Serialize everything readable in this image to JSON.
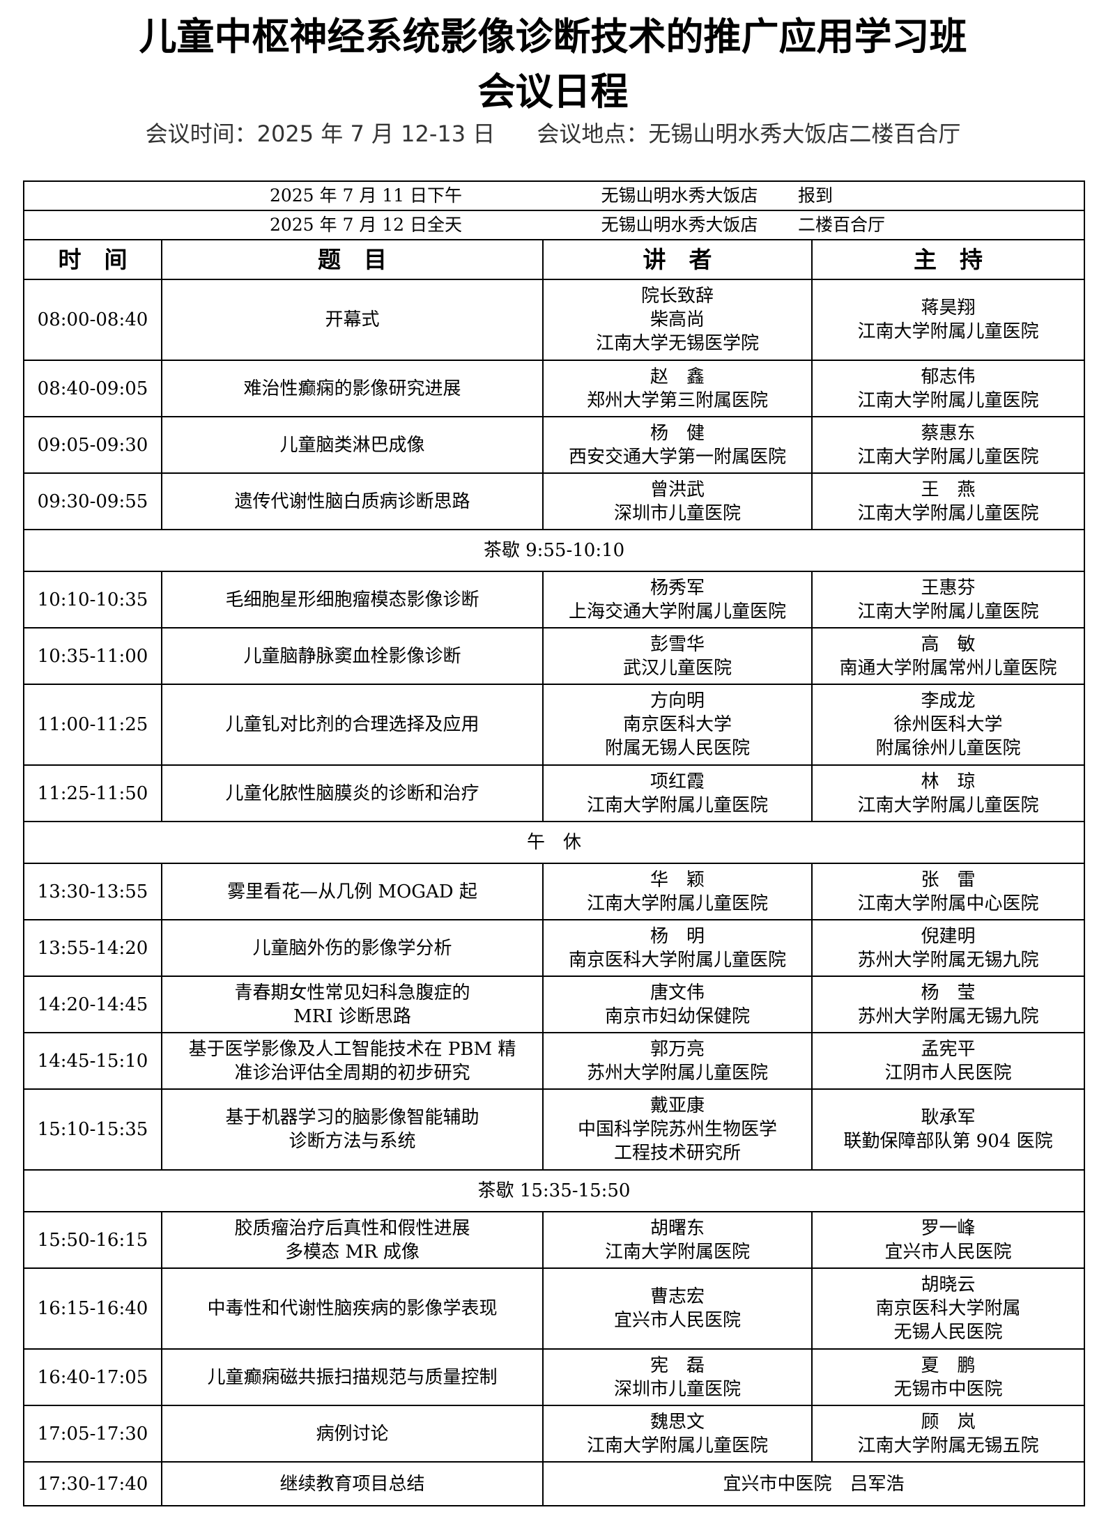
{
  "header": {
    "title": "儿童中枢神经系统影像诊断技术的推广应用学习班",
    "subtitle": "会议日程",
    "info": [
      "会议时间：2025 年 7 月 12-13 日",
      "会议地点：无锡山明水秀大饭店二楼百合厅"
    ]
  },
  "table": {
    "notices": [
      [
        "2025 年 7 月 11 日下午",
        "无锡山明水秀大饭店",
        "报到"
      ],
      [
        "2025 年 7 月 12 日全天",
        "无锡山明水秀大饭店",
        "二楼百合厅"
      ]
    ],
    "columns": [
      "时　间",
      "题　目",
      "讲　者",
      "主　持"
    ],
    "rows": [
      {
        "time": "08:00-08:40",
        "topic": [
          "开幕式"
        ],
        "speaker": [
          "院长致辞",
          "柴高尚",
          "江南大学无锡医学院"
        ],
        "host": [
          "蒋昊翔",
          "江南大学附属儿童医院"
        ]
      },
      {
        "time": "08:40-09:05",
        "topic": [
          "难治性癫痫的影像研究进展"
        ],
        "speaker": [
          "赵　鑫",
          "郑州大学第三附属医院"
        ],
        "host": [
          "郁志伟",
          "江南大学附属儿童医院"
        ]
      },
      {
        "time": "09:05-09:30",
        "topic": [
          "儿童脑类淋巴成像"
        ],
        "speaker": [
          "杨　健",
          "西安交通大学第一附属医院"
        ],
        "host": [
          "蔡惠东",
          "江南大学附属儿童医院"
        ]
      },
      {
        "time": "09:30-09:55",
        "topic": [
          "遗传代谢性脑白质病诊断思路"
        ],
        "speaker": [
          "曾洪武",
          "深圳市儿童医院"
        ],
        "host": [
          "王　燕",
          "江南大学附属儿童医院"
        ]
      },
      {
        "break": "茶歇 9:55-10:10"
      },
      {
        "time": "10:10-10:35",
        "topic": [
          "毛细胞星形细胞瘤模态影像诊断"
        ],
        "speaker": [
          "杨秀军",
          "上海交通大学附属儿童医院"
        ],
        "host": [
          "王惠芬",
          "江南大学附属儿童医院"
        ]
      },
      {
        "time": "10:35-11:00",
        "topic": [
          "儿童脑静脉窦血栓影像诊断"
        ],
        "speaker": [
          "彭雪华",
          "武汉儿童医院"
        ],
        "host": [
          "高　敏",
          "南通大学附属常州儿童医院"
        ]
      },
      {
        "time": "11:00-11:25",
        "topic": [
          "儿童钆对比剂的合理选择及应用"
        ],
        "speaker": [
          "方向明",
          "南京医科大学",
          "附属无锡人民医院"
        ],
        "host": [
          "李成龙",
          "徐州医科大学",
          "附属徐州儿童医院"
        ]
      },
      {
        "time": "11:25-11:50",
        "topic": [
          "儿童化脓性脑膜炎的诊断和治疗"
        ],
        "speaker": [
          "项红霞",
          "江南大学附属儿童医院"
        ],
        "host": [
          "林　琼",
          "江南大学附属儿童医院"
        ]
      },
      {
        "break": "午　休"
      },
      {
        "time": "13:30-13:55",
        "topic": [
          "雾里看花—从几例 MOGAD 起"
        ],
        "speaker": [
          "华　颖",
          "江南大学附属儿童医院"
        ],
        "host": [
          "张　雷",
          "江南大学附属中心医院"
        ]
      },
      {
        "time": "13:55-14:20",
        "topic": [
          "儿童脑外伤的影像学分析"
        ],
        "speaker": [
          "杨　明",
          "南京医科大学附属儿童医院"
        ],
        "host": [
          "倪建明",
          "苏州大学附属无锡九院"
        ]
      },
      {
        "time": "14:20-14:45",
        "topic": [
          "青春期女性常见妇科急腹症的",
          "MRI 诊断思路"
        ],
        "speaker": [
          "唐文伟",
          "南京市妇幼保健院"
        ],
        "host": [
          "杨　莹",
          "苏州大学附属无锡九院"
        ]
      },
      {
        "time": "14:45-15:10",
        "topic": [
          "基于医学影像及人工智能技术在 PBM 精",
          "准诊治评估全周期的初步研究"
        ],
        "speaker": [
          "郭万亮",
          "苏州大学附属儿童医院"
        ],
        "host": [
          "孟宪平",
          "江阴市人民医院"
        ]
      },
      {
        "time": "15:10-15:35",
        "topic": [
          "基于机器学习的脑影像智能辅助",
          "诊断方法与系统"
        ],
        "speaker": [
          "戴亚康",
          "中国科学院苏州生物医学",
          "工程技术研究所"
        ],
        "host": [
          "耿承军",
          "联勤保障部队第 904 医院"
        ]
      },
      {
        "break": "茶歇 15:35-15:50"
      },
      {
        "time": "15:50-16:15",
        "topic": [
          "胶质瘤治疗后真性和假性进展",
          "多模态 MR 成像"
        ],
        "speaker": [
          "胡曙东",
          "江南大学附属医院"
        ],
        "host": [
          "罗一峰",
          "宜兴市人民医院"
        ]
      },
      {
        "time": "16:15-16:40",
        "topic": [
          "中毒性和代谢性脑疾病的影像学表现"
        ],
        "speaker": [
          "曹志宏",
          "宜兴市人民医院"
        ],
        "host": [
          "胡晓云",
          "南京医科大学附属",
          "无锡人民医院"
        ]
      },
      {
        "time": "16:40-17:05",
        "topic": [
          "儿童癫痫磁共振扫描规范与质量控制"
        ],
        "speaker": [
          "宪　磊",
          "深圳市儿童医院"
        ],
        "host": [
          "夏　鹏",
          "无锡市中医院"
        ]
      },
      {
        "time": "17:05-17:30",
        "topic": [
          "病例讨论"
        ],
        "speaker": [
          "魏思文",
          "江南大学附属儿童医院"
        ],
        "host": [
          "顾　岚",
          "江南大学附属无锡五院"
        ]
      },
      {
        "time": "17:30-17:40",
        "topic": [
          "继续教育项目总结"
        ],
        "speaker_host": "宜兴市中医院　吕军浩"
      }
    ]
  }
}
